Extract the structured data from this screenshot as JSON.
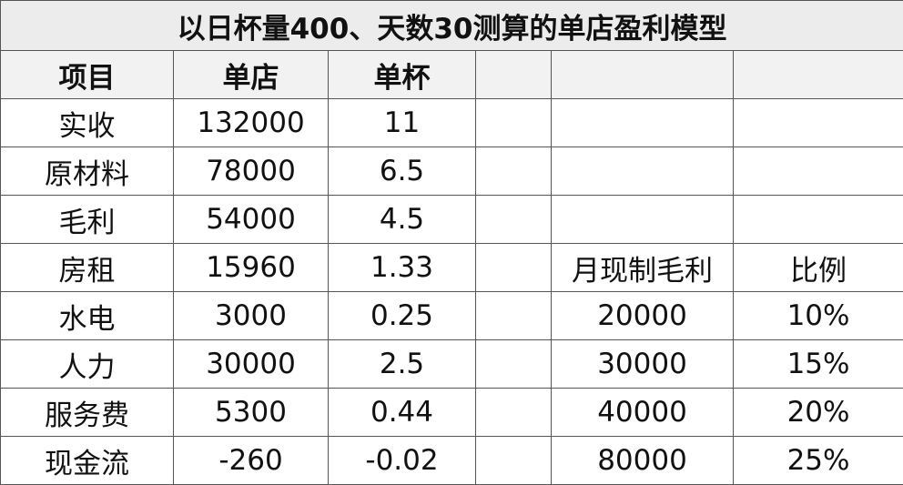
{
  "title": "以日杯量400、天数30测算的单店盈利模型",
  "table": {
    "header": [
      "项目",
      "单店",
      "单杯"
    ],
    "rows": [
      [
        "实收",
        "132000",
        "11"
      ],
      [
        "原材料",
        "78000",
        "6.5"
      ],
      [
        "毛利",
        "54000",
        "4.5"
      ],
      [
        "房租",
        "15960",
        "1.33"
      ],
      [
        "水电",
        "3000",
        "0.25"
      ],
      [
        "人力",
        "30000",
        "2.5"
      ],
      [
        "服务费",
        "5300",
        "0.44"
      ],
      [
        "现金流",
        "-260",
        "-0.02"
      ]
    ]
  },
  "side_table": {
    "header": [
      "月现制毛利",
      "比例"
    ],
    "rows": [
      [
        "20000",
        "10%"
      ],
      [
        "30000",
        "15%"
      ],
      [
        "40000",
        "20%"
      ],
      [
        "80000",
        "25%"
      ]
    ]
  }
}
